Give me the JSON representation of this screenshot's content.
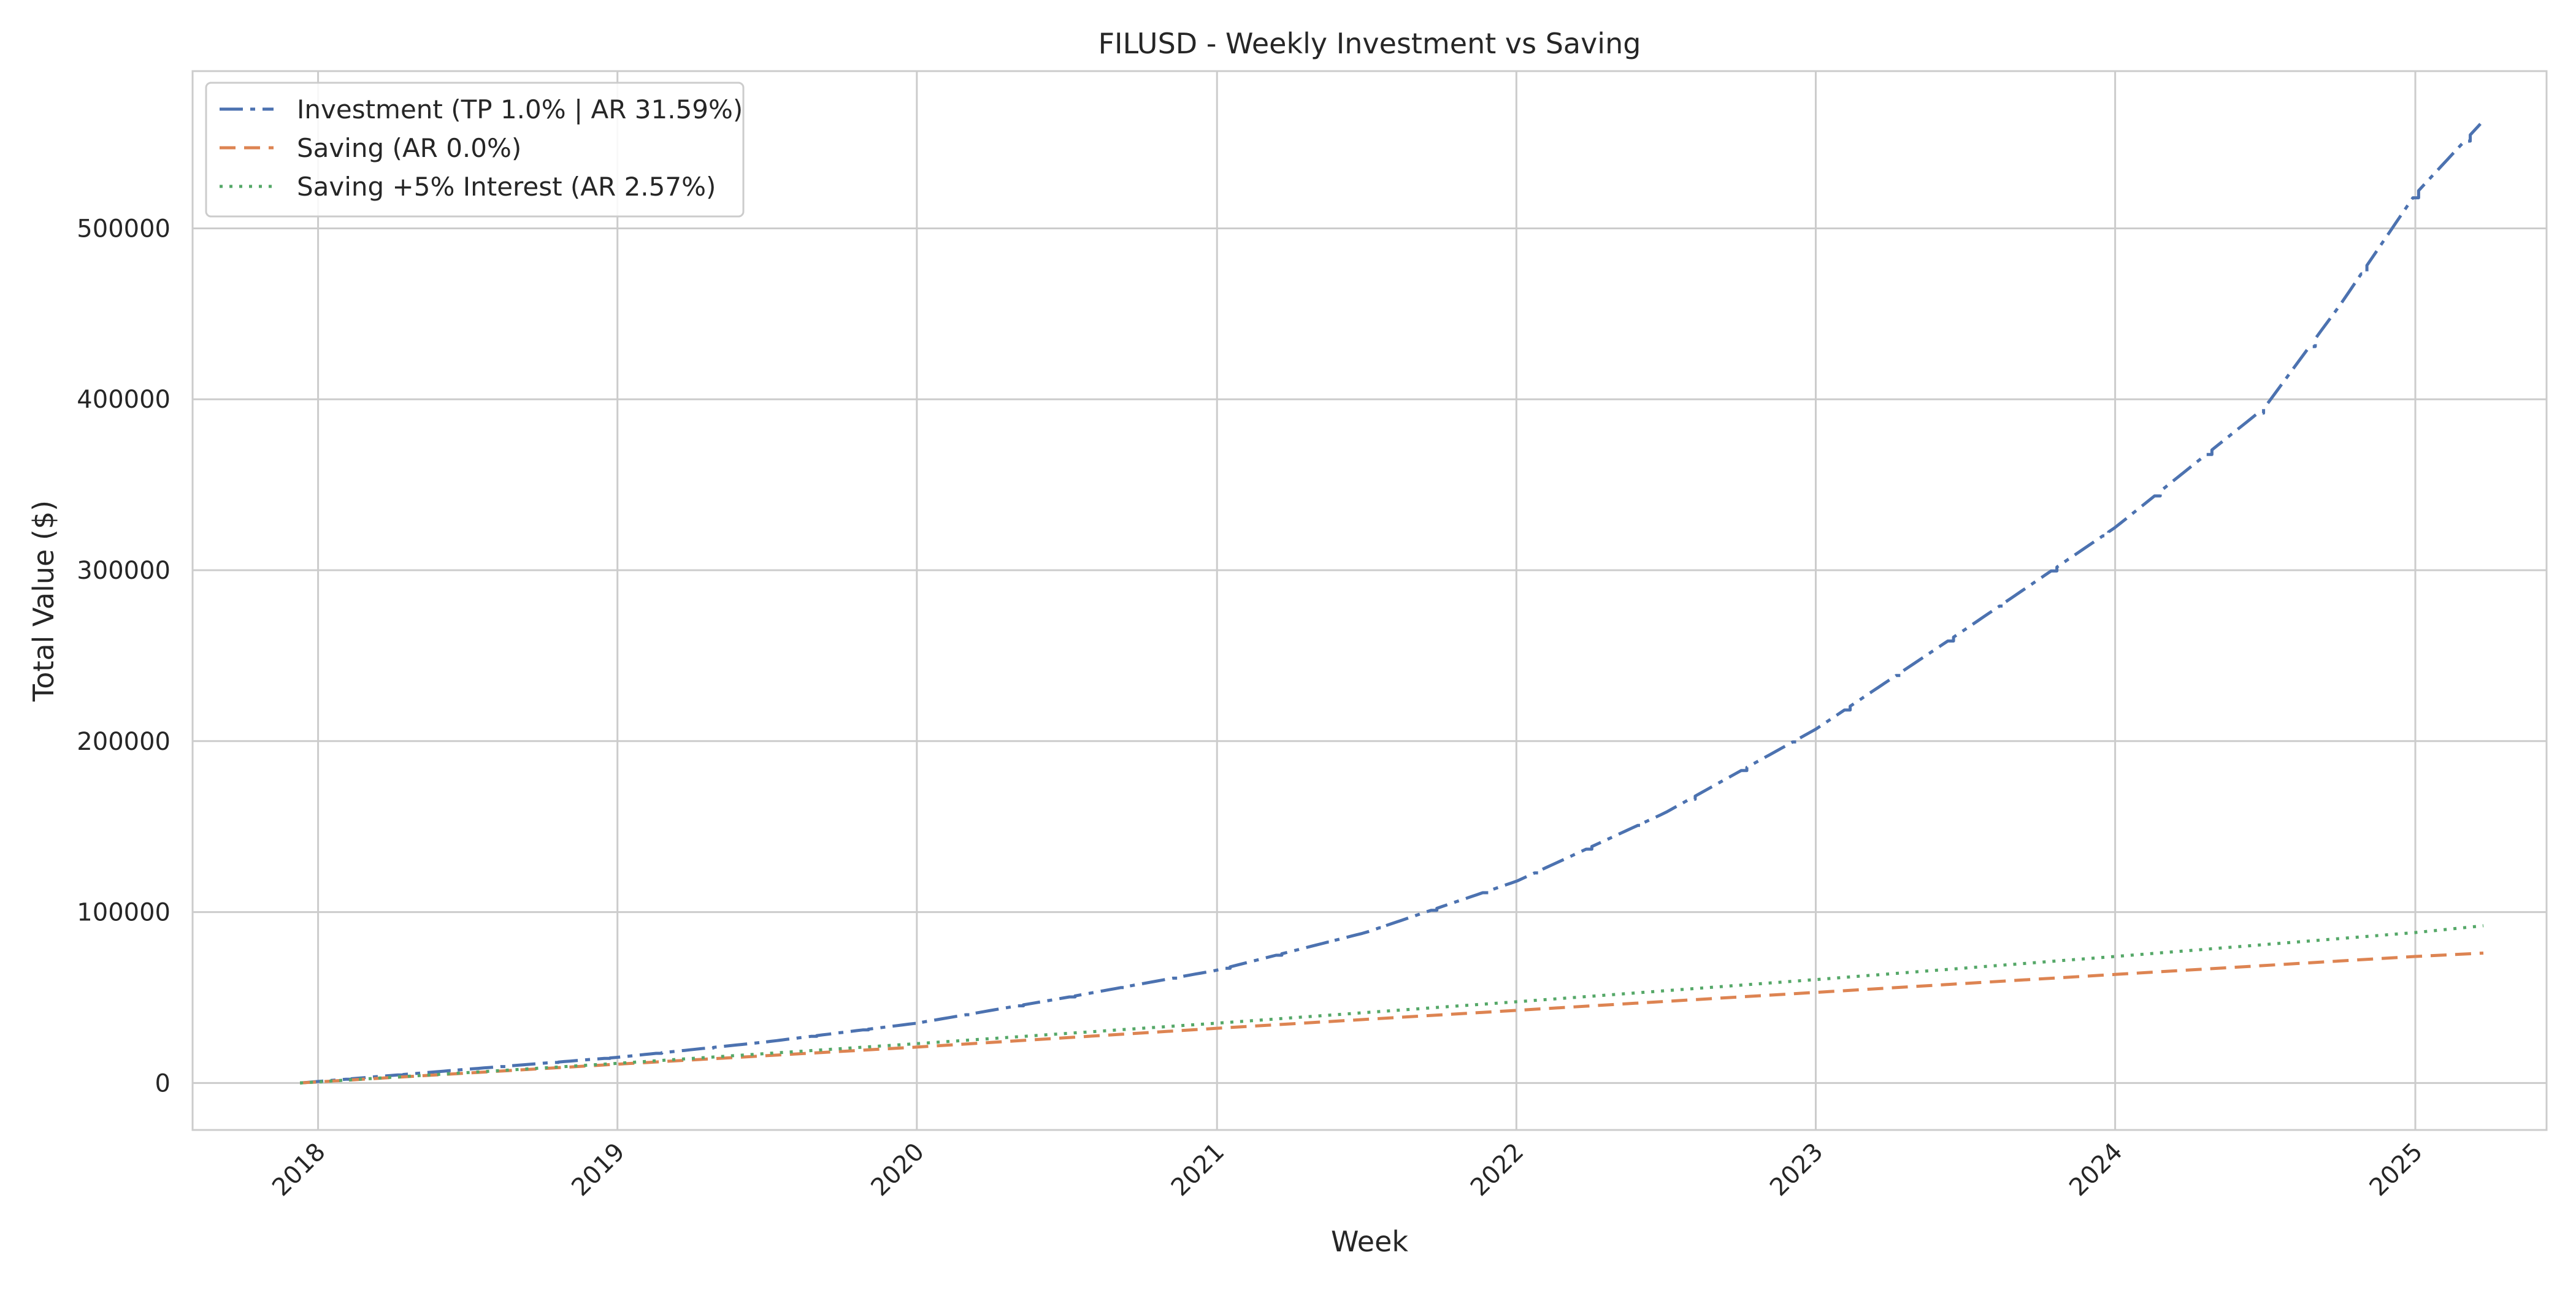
{
  "chart_data": {
    "type": "line",
    "title": "FILUSD - Weekly Investment vs Saving",
    "xlabel": "Week",
    "ylabel": "Total Value ($)",
    "x_type": "date",
    "xlim": [
      "2017-08-01",
      "2025-06-10"
    ],
    "ylim": [
      -27500,
      592000
    ],
    "x_ticks": [
      "2018",
      "2019",
      "2020",
      "2021",
      "2022",
      "2023",
      "2024",
      "2025"
    ],
    "y_ticks": [
      0,
      100000,
      200000,
      300000,
      400000,
      500000
    ],
    "y_tick_labels": [
      "0",
      "100000",
      "200000",
      "300000",
      "400000",
      "500000"
    ],
    "grid": true,
    "legend_position": "upper-left",
    "series": [
      {
        "name": "Investment (TP 1.0% | AR 31.59%)",
        "color": "#4c72b0",
        "style": "dash-dot",
        "x": [
          "2017-12-10",
          "2018-07-01",
          "2019-01-01",
          "2019-07-01",
          "2020-01-01",
          "2020-07-01",
          "2021-01-01",
          "2021-07-01",
          "2022-01-01",
          "2022-07-01",
          "2023-01-01",
          "2023-07-01",
          "2024-01-01",
          "2024-07-01",
          "2024-10-01",
          "2025-01-01",
          "2025-03-25"
        ],
        "y": [
          0,
          8000,
          15000,
          24000,
          35000,
          50000,
          66000,
          88000,
          118000,
          158000,
          207000,
          265000,
          325000,
          395000,
          455000,
          520000,
          563000
        ]
      },
      {
        "name": "Saving (AR 0.0%)",
        "color": "#dd8452",
        "style": "dashed",
        "x": [
          "2017-12-10",
          "2019-01-01",
          "2020-01-01",
          "2021-01-01",
          "2022-01-01",
          "2023-01-01",
          "2024-01-01",
          "2025-01-01",
          "2025-03-25"
        ],
        "y": [
          0,
          11000,
          21000,
          32000,
          42500,
          53000,
          63500,
          74000,
          76000
        ]
      },
      {
        "name": "Saving +5% Interest (AR 2.57%)",
        "color": "#55a868",
        "style": "dotted",
        "x": [
          "2017-12-10",
          "2019-01-01",
          "2020-01-01",
          "2021-01-01",
          "2022-01-01",
          "2023-01-01",
          "2024-01-01",
          "2025-01-01",
          "2025-03-25"
        ],
        "y": [
          0,
          11500,
          23000,
          35000,
          47500,
          60500,
          74000,
          88000,
          92000
        ]
      }
    ]
  }
}
